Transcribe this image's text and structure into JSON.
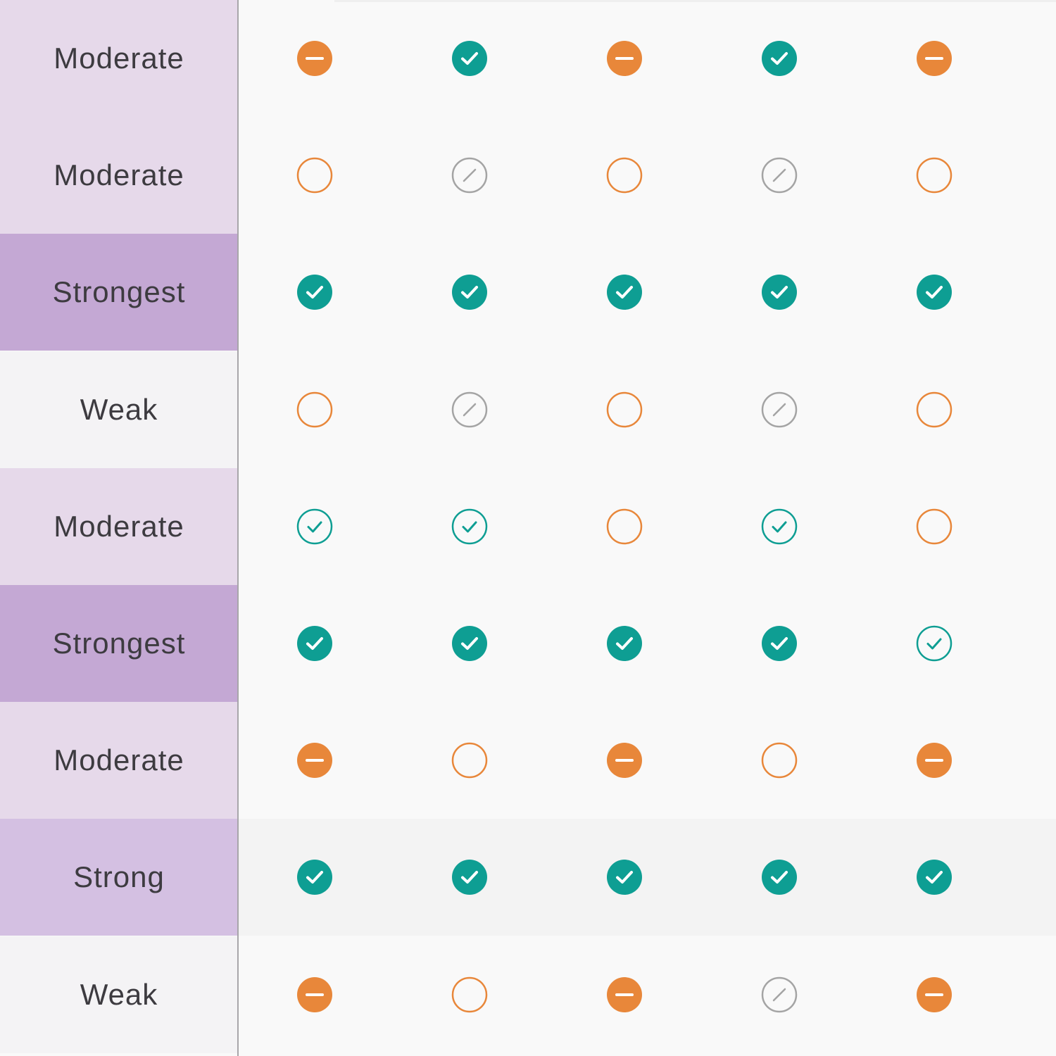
{
  "colors": {
    "moderate_bg": "#e6d9ea",
    "strongest_bg": "#c4a8d4",
    "strong_bg": "#d4c0e2",
    "weak_bg": "#f4f3f5",
    "panel_bg": "#f9f9f9",
    "highlight_row_bg": "#f3f3f3",
    "teal": "#0e9e93",
    "orange": "#e8873a",
    "gray": "#a4a4a4"
  },
  "icon_legend": {
    "check-filled": "teal filled check-icon",
    "check-outline": "teal outlined check-icon",
    "minus-filled": "orange filled minus-icon",
    "circle-outline": "orange empty circle-icon",
    "slash-outline": "gray not-applicable slash-icon"
  },
  "rows": [
    {
      "label": "Moderate",
      "level": "moderate",
      "cells": [
        "minus-filled",
        "check-filled",
        "minus-filled",
        "check-filled",
        "minus-filled"
      ]
    },
    {
      "label": "Moderate",
      "level": "moderate",
      "cells": [
        "circle-outline",
        "slash-outline",
        "circle-outline",
        "slash-outline",
        "circle-outline"
      ]
    },
    {
      "label": "Strongest",
      "level": "strongest",
      "cells": [
        "check-filled",
        "check-filled",
        "check-filled",
        "check-filled",
        "check-filled"
      ]
    },
    {
      "label": "Weak",
      "level": "weak",
      "cells": [
        "circle-outline",
        "slash-outline",
        "circle-outline",
        "slash-outline",
        "circle-outline"
      ]
    },
    {
      "label": "Moderate",
      "level": "moderate",
      "cells": [
        "check-outline",
        "check-outline",
        "circle-outline",
        "check-outline",
        "circle-outline"
      ]
    },
    {
      "label": "Strongest",
      "level": "strongest",
      "cells": [
        "check-filled",
        "check-filled",
        "check-filled",
        "check-filled",
        "check-outline"
      ]
    },
    {
      "label": "Moderate",
      "level": "moderate",
      "cells": [
        "minus-filled",
        "circle-outline",
        "minus-filled",
        "circle-outline",
        "minus-filled"
      ]
    },
    {
      "label": "Strong",
      "level": "strong",
      "highlighted": true,
      "cells": [
        "check-filled",
        "check-filled",
        "check-filled",
        "check-filled",
        "check-filled"
      ]
    },
    {
      "label": "Weak",
      "level": "weak",
      "cells": [
        "minus-filled",
        "circle-outline",
        "minus-filled",
        "slash-outline",
        "minus-filled"
      ]
    }
  ]
}
